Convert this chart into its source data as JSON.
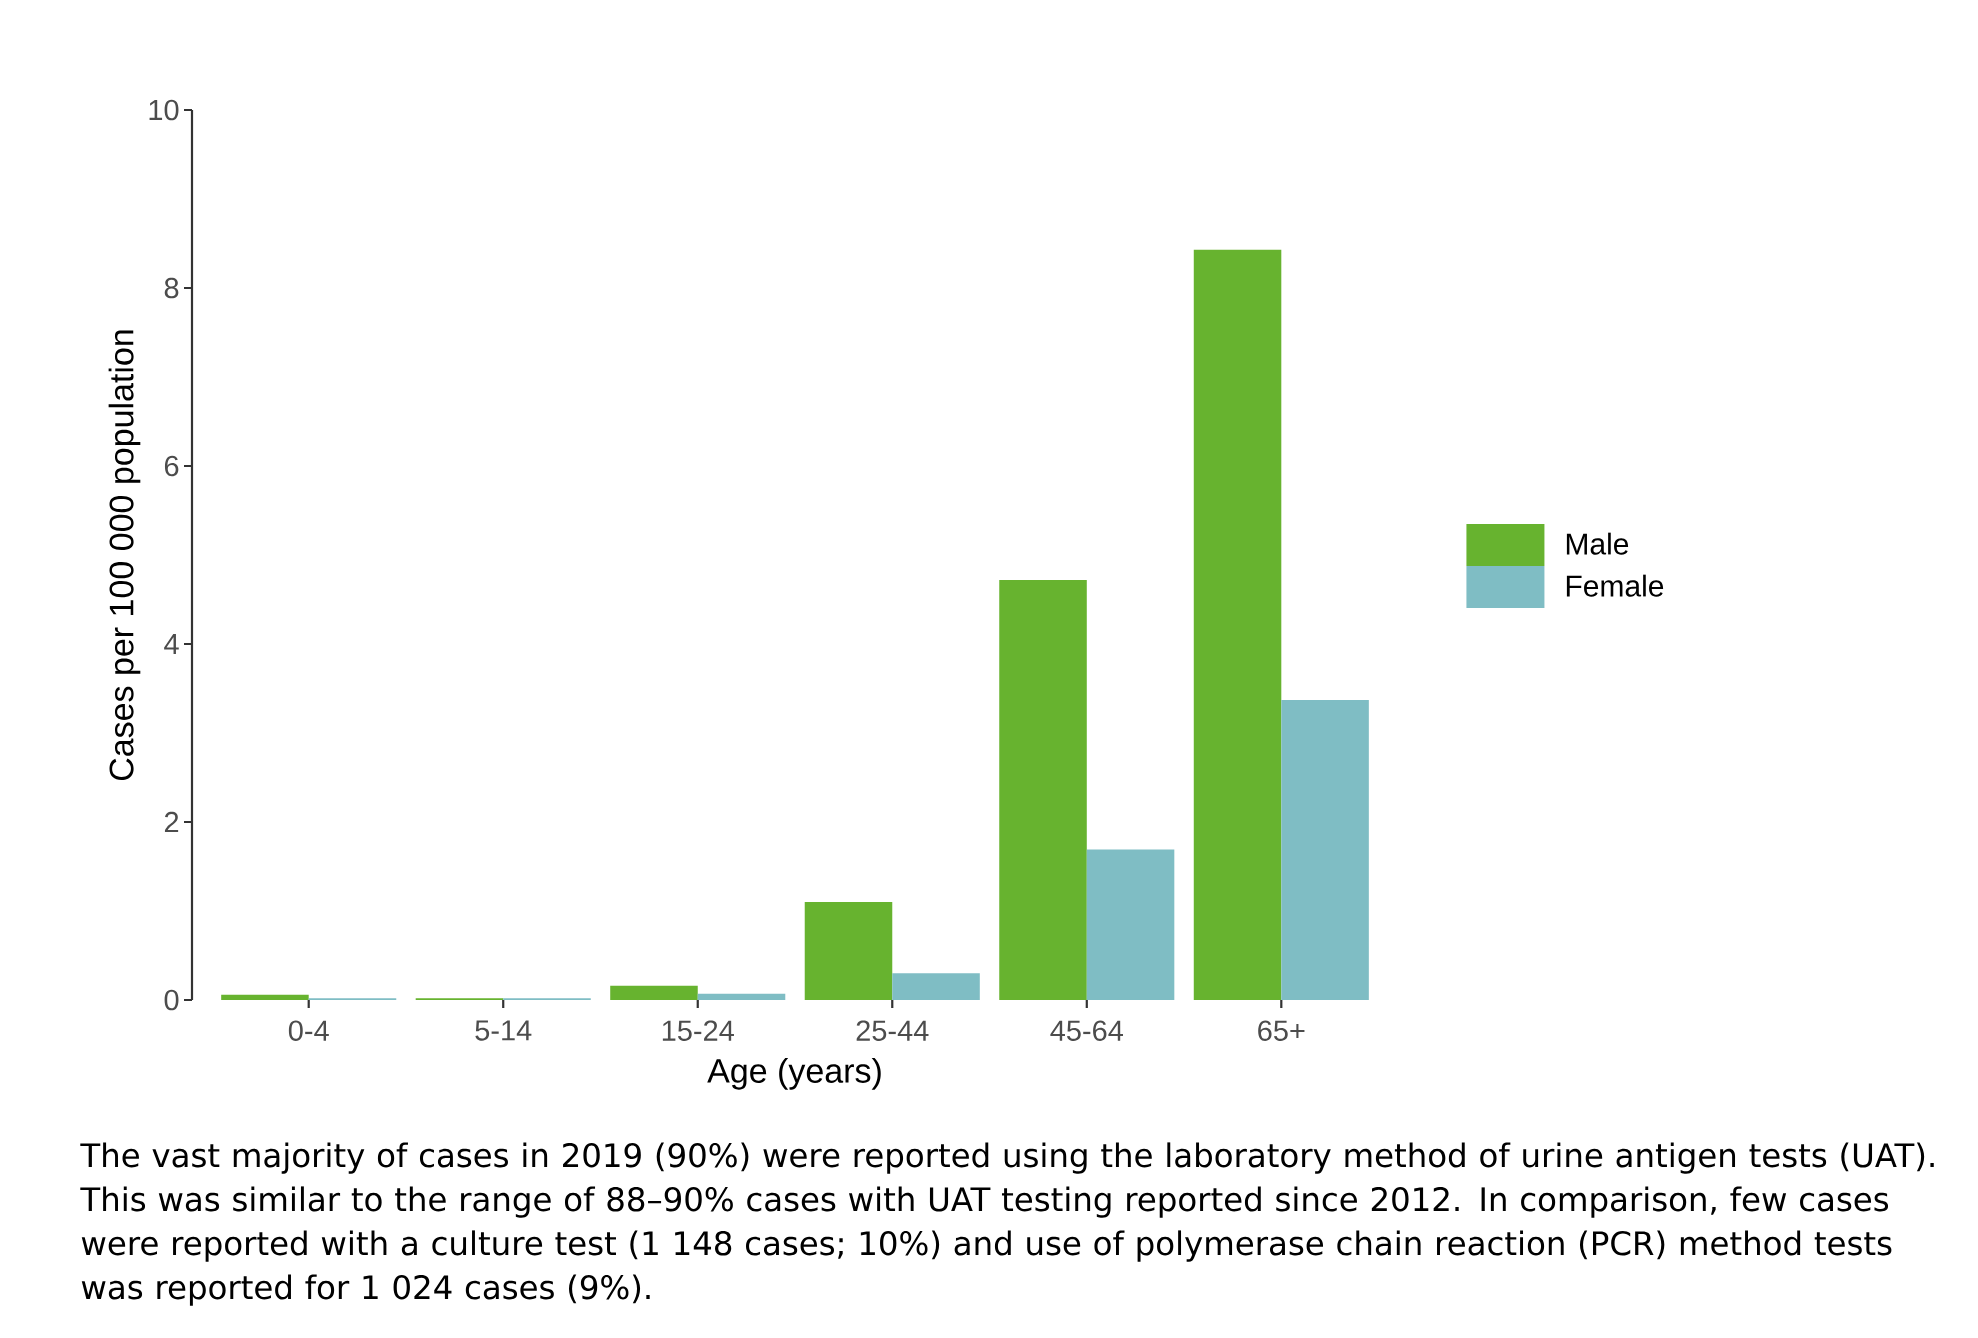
{
  "chart_data": {
    "type": "bar",
    "categories": [
      "0-4",
      "5-14",
      "15-24",
      "25-44",
      "45-64",
      "65+"
    ],
    "series": [
      {
        "name": "Male",
        "color": "#67b32f",
        "values": [
          0.06,
          0.02,
          0.16,
          1.1,
          4.72,
          8.43
        ]
      },
      {
        "name": "Female",
        "color": "#7fbdc4",
        "values": [
          0.02,
          0.02,
          0.07,
          0.3,
          1.69,
          3.37
        ]
      }
    ],
    "xlabel": "Age (years)",
    "ylabel": "Cases per 100 000 population",
    "ylim": [
      0,
      10
    ],
    "yticks": [
      0,
      2,
      4,
      6,
      8,
      10
    ],
    "legend": "right",
    "annotations": [
      "The vast majority of cases in 2019 (90%) were reported using the laboratory method of urine antigen tests (UAT). This was similar to the range of 88–90% cases with UAT testing reported since 2012. In comparison, few cases were reported with a culture test (1 148 cases; 10%) and use of polymerase chain reaction (PCR) method tests was reported for 1 024 cases (9%)."
    ]
  }
}
